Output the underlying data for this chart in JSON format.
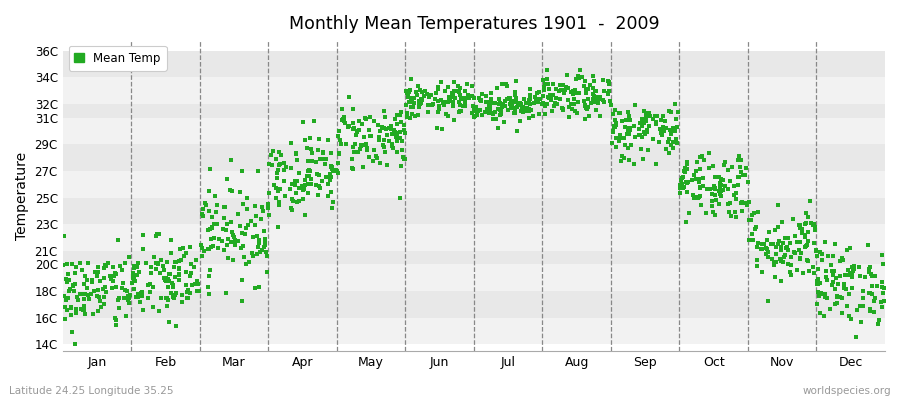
{
  "title": "Monthly Mean Temperatures 1901  -  2009",
  "ylabel": "Temperature",
  "ytick_labels": [
    "14C",
    "16C",
    "18C",
    "20C",
    "21C",
    "23C",
    "25C",
    "27C",
    "29C",
    "31C",
    "32C",
    "34C",
    "36C"
  ],
  "ytick_values": [
    14,
    16,
    18,
    20,
    21,
    23,
    25,
    27,
    29,
    31,
    32,
    34,
    36
  ],
  "months": [
    "Jan",
    "Feb",
    "Mar",
    "Apr",
    "May",
    "Jun",
    "Jul",
    "Aug",
    "Sep",
    "Oct",
    "Nov",
    "Dec"
  ],
  "dot_color": "#22aa22",
  "legend_label": "Mean Temp",
  "bottom_left_text": "Latitude 24.25 Longitude 35.25",
  "bottom_right_text": "worldspecies.org",
  "n_years": 109,
  "seed": 42,
  "monthly_means": [
    18.0,
    18.8,
    22.5,
    26.8,
    29.5,
    32.2,
    32.0,
    32.5,
    30.0,
    26.0,
    21.5,
    18.5
  ],
  "monthly_stds": [
    1.5,
    1.6,
    1.9,
    1.5,
    1.3,
    0.7,
    0.7,
    0.8,
    1.1,
    1.3,
    1.5,
    1.5
  ]
}
